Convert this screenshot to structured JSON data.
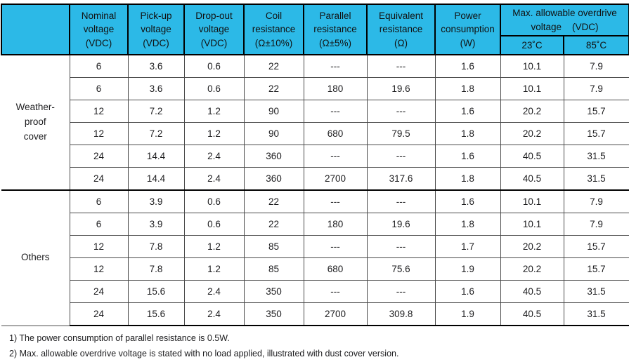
{
  "colors": {
    "header_bg": "#2cb9e7",
    "border_dark": "#000000",
    "border_light": "#4a4a4a",
    "text": "#1d1d1f"
  },
  "table": {
    "columns": [
      "Nominal\nvoltage\n(VDC)",
      "Pick-up\nvoltage\n(VDC)",
      "Drop-out\nvoltage\n(VDC)",
      "Coil\nresistance\n(Ω±10%)",
      "Parallel\nresistance\n(Ω±5%)",
      "Equivalent\nresistance\n(Ω)",
      "Power\nconsumption\n(W)"
    ],
    "overdrive": {
      "label": "Max. allowable overdrive\nvoltage    (VDC)",
      "sub": [
        "23˚C",
        "85˚C"
      ]
    },
    "groups": [
      {
        "label": "Weather-\nproof\ncover",
        "rows": [
          [
            "6",
            "3.6",
            "0.6",
            "22",
            "---",
            "---",
            "1.6",
            "10.1",
            "7.9"
          ],
          [
            "6",
            "3.6",
            "0.6",
            "22",
            "180",
            "19.6",
            "1.8",
            "10.1",
            "7.9"
          ],
          [
            "12",
            "7.2",
            "1.2",
            "90",
            "---",
            "---",
            "1.6",
            "20.2",
            "15.7"
          ],
          [
            "12",
            "7.2",
            "1.2",
            "90",
            "680",
            "79.5",
            "1.8",
            "20.2",
            "15.7"
          ],
          [
            "24",
            "14.4",
            "2.4",
            "360",
            "---",
            "---",
            "1.6",
            "40.5",
            "31.5"
          ],
          [
            "24",
            "14.4",
            "2.4",
            "360",
            "2700",
            "317.6",
            "1.8",
            "40.5",
            "31.5"
          ]
        ]
      },
      {
        "label": "Others",
        "rows": [
          [
            "6",
            "3.9",
            "0.6",
            "22",
            "---",
            "---",
            "1.6",
            "10.1",
            "7.9"
          ],
          [
            "6",
            "3.9",
            "0.6",
            "22",
            "180",
            "19.6",
            "1.8",
            "10.1",
            "7.9"
          ],
          [
            "12",
            "7.8",
            "1.2",
            "85",
            "---",
            "---",
            "1.7",
            "20.2",
            "15.7"
          ],
          [
            "12",
            "7.8",
            "1.2",
            "85",
            "680",
            "75.6",
            "1.9",
            "20.2",
            "15.7"
          ],
          [
            "24",
            "15.6",
            "2.4",
            "350",
            "---",
            "---",
            "1.6",
            "40.5",
            "31.5"
          ],
          [
            "24",
            "15.6",
            "2.4",
            "350",
            "2700",
            "309.8",
            "1.9",
            "40.5",
            "31.5"
          ]
        ]
      }
    ]
  },
  "footnotes": [
    "1)  The power consumption of parallel resistance is 0.5W.",
    "2)  Max. allowable overdrive voltage is stated with no load applied, illustrated with dust cover version."
  ]
}
